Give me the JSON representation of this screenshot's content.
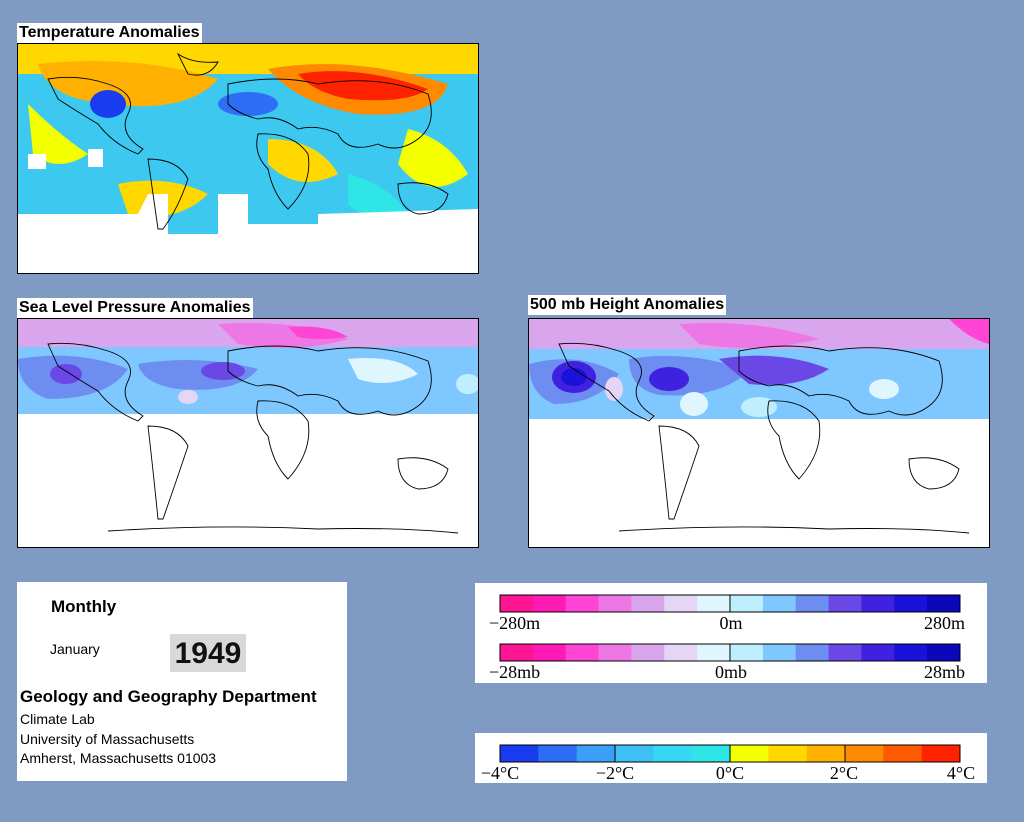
{
  "maps": {
    "temperature": {
      "title": "Temperature Anomalies"
    },
    "slp": {
      "title": "Sea Level Pressure Anomalies"
    },
    "height500": {
      "title": "500 mb Height Anomalies"
    }
  },
  "info": {
    "period": "Monthly",
    "month": "January",
    "year": "1949",
    "department": "Geology and Geography Department",
    "lab": "Climate Lab",
    "university": "University of Massachusetts",
    "address": "Amherst, Massachusetts 01003"
  },
  "legends": {
    "height": {
      "labels": [
        "−280m",
        "0m",
        "280m"
      ],
      "colors": [
        "#ff1493",
        "#ff1ab3",
        "#ff44d6",
        "#ee77e6",
        "#d9a6ee",
        "#e6d6f6",
        "#dff6ff",
        "#bfefff",
        "#7fc8ff",
        "#6d8ef0",
        "#6a48e6",
        "#3f22e0",
        "#1a12d9",
        "#0a08b8"
      ]
    },
    "pressure": {
      "labels": [
        "−28mb",
        "0mb",
        "28mb"
      ],
      "colors": [
        "#ff1493",
        "#ff1ab3",
        "#ff44d6",
        "#ee77e6",
        "#d9a6ee",
        "#e6d6f6",
        "#dff6ff",
        "#bfefff",
        "#7fc8ff",
        "#6d8ef0",
        "#6a48e6",
        "#3f22e0",
        "#1a12d9",
        "#0a08b8"
      ]
    },
    "temperature": {
      "labels": [
        "−4°C",
        "−2°C",
        "0°C",
        "2°C",
        "4°C"
      ],
      "colors": [
        "#1a3cf0",
        "#2d6ef5",
        "#3aa0f7",
        "#3dc0f5",
        "#35d8f0",
        "#2ee6e6",
        "#f4ff00",
        "#ffd800",
        "#ffb000",
        "#ff8a00",
        "#ff5a00",
        "#ff2200"
      ]
    }
  }
}
